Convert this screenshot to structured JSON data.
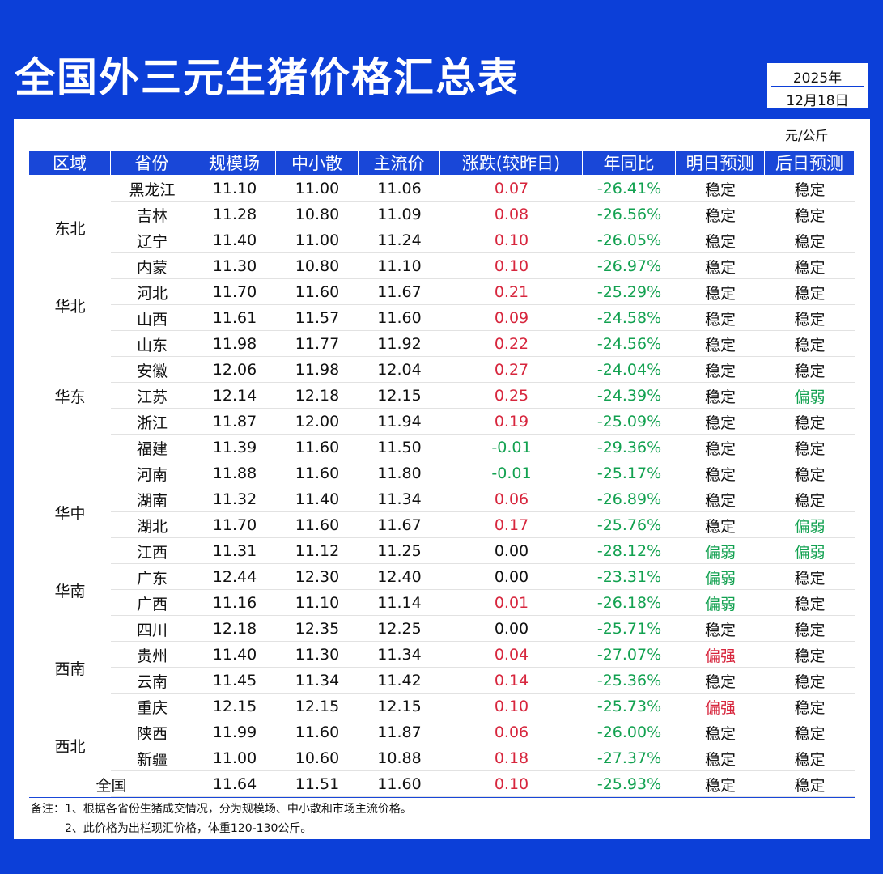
{
  "header": {
    "title": "全国外三元生猪价格汇总表",
    "year": "2025年",
    "date": "12月18日",
    "unit": "元/公斤"
  },
  "table": {
    "headers": [
      "区域",
      "省份",
      "规模场",
      "中小散",
      "主流价",
      "涨跌(较昨日)",
      "年同比",
      "明日预测",
      "后日预测"
    ],
    "groups": [
      {
        "region": "东北",
        "rows": [
          [
            "黑龙江",
            "11.10",
            "11.00",
            "11.06",
            "0.07",
            "-26.41%",
            "稳定",
            "稳定"
          ],
          [
            "吉林",
            "11.28",
            "10.80",
            "11.09",
            "0.08",
            "-26.56%",
            "稳定",
            "稳定"
          ],
          [
            "辽宁",
            "11.40",
            "11.00",
            "11.24",
            "0.10",
            "-26.05%",
            "稳定",
            "稳定"
          ],
          [
            "内蒙",
            "11.30",
            "10.80",
            "11.10",
            "0.10",
            "-26.97%",
            "稳定",
            "稳定"
          ]
        ]
      },
      {
        "region": "华北",
        "rows": [
          [
            "河北",
            "11.70",
            "11.60",
            "11.67",
            "0.21",
            "-25.29%",
            "稳定",
            "稳定"
          ],
          [
            "山西",
            "11.61",
            "11.57",
            "11.60",
            "0.09",
            "-24.58%",
            "稳定",
            "稳定"
          ]
        ]
      },
      {
        "region": "华东",
        "rows": [
          [
            "山东",
            "11.98",
            "11.77",
            "11.92",
            "0.22",
            "-24.56%",
            "稳定",
            "稳定"
          ],
          [
            "安徽",
            "12.06",
            "11.98",
            "12.04",
            "0.27",
            "-24.04%",
            "稳定",
            "稳定"
          ],
          [
            "江苏",
            "12.14",
            "12.18",
            "12.15",
            "0.25",
            "-24.39%",
            "稳定",
            "偏弱"
          ],
          [
            "浙江",
            "11.87",
            "12.00",
            "11.94",
            "0.19",
            "-25.09%",
            "稳定",
            "稳定"
          ],
          [
            "福建",
            "11.39",
            "11.60",
            "11.50",
            "-0.01",
            "-29.36%",
            "稳定",
            "稳定"
          ]
        ]
      },
      {
        "region": "华中",
        "rows": [
          [
            "河南",
            "11.88",
            "11.60",
            "11.80",
            "-0.01",
            "-25.17%",
            "稳定",
            "稳定"
          ],
          [
            "湖南",
            "11.32",
            "11.40",
            "11.34",
            "0.06",
            "-26.89%",
            "稳定",
            "稳定"
          ],
          [
            "湖北",
            "11.70",
            "11.60",
            "11.67",
            "0.17",
            "-25.76%",
            "稳定",
            "偏弱"
          ],
          [
            "江西",
            "11.31",
            "11.12",
            "11.25",
            "0.00",
            "-28.12%",
            "偏弱",
            "偏弱"
          ]
        ]
      },
      {
        "region": "华南",
        "rows": [
          [
            "广东",
            "12.44",
            "12.30",
            "12.40",
            "0.00",
            "-23.31%",
            "偏弱",
            "稳定"
          ],
          [
            "广西",
            "11.16",
            "11.10",
            "11.14",
            "0.01",
            "-26.18%",
            "偏弱",
            "稳定"
          ]
        ]
      },
      {
        "region": "西南",
        "rows": [
          [
            "四川",
            "12.18",
            "12.35",
            "12.25",
            "0.00",
            "-25.71%",
            "稳定",
            "稳定"
          ],
          [
            "贵州",
            "11.40",
            "11.30",
            "11.34",
            "0.04",
            "-27.07%",
            "偏强",
            "稳定"
          ],
          [
            "云南",
            "11.45",
            "11.34",
            "11.42",
            "0.14",
            "-25.36%",
            "稳定",
            "稳定"
          ],
          [
            "重庆",
            "12.15",
            "12.15",
            "12.15",
            "0.10",
            "-25.73%",
            "偏强",
            "稳定"
          ]
        ]
      },
      {
        "region": "西北",
        "rows": [
          [
            "陕西",
            "11.99",
            "11.60",
            "11.87",
            "0.06",
            "-26.00%",
            "稳定",
            "稳定"
          ],
          [
            "新疆",
            "11.00",
            "10.60",
            "10.88",
            "0.18",
            "-27.37%",
            "稳定",
            "稳定"
          ]
        ]
      }
    ],
    "total": [
      "全国",
      "11.64",
      "11.51",
      "11.60",
      "0.10",
      "-25.93%",
      "稳定",
      "稳定"
    ],
    "colors": {
      "rise": "#d7263d",
      "fall": "#12a150"
    },
    "forecast_colors": {
      "偏弱": "#12a150",
      "偏强": "#d7263d"
    }
  },
  "notes": {
    "label": "备注：",
    "items": [
      "1、根据各省份生猪成交情况，分为规模场、中小散和市场主流价格。",
      "2、此价格为出栏现汇价格，体重120-130公斤。"
    ]
  }
}
